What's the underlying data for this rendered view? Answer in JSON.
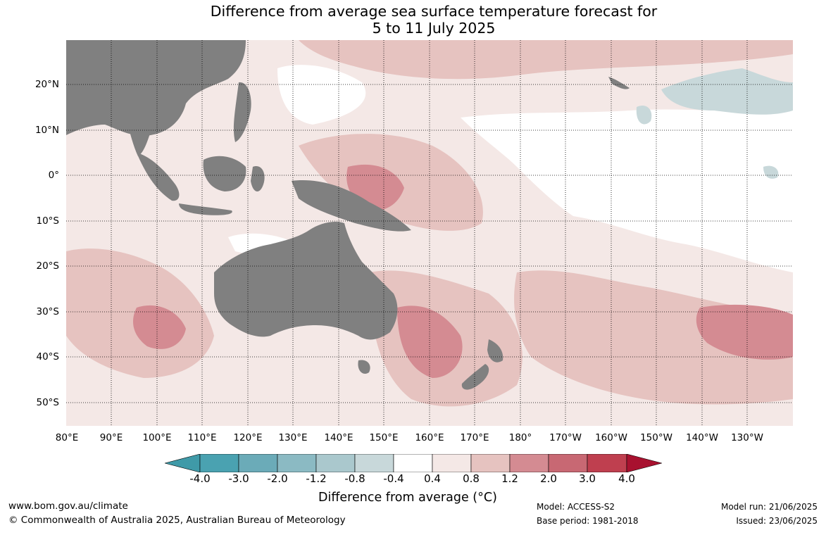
{
  "title": {
    "line1": "Difference from average sea surface temperature forecast for",
    "line2": "5 to 11 July 2025"
  },
  "map": {
    "lat_labels": [
      "20°N",
      "10°N",
      "0°",
      "10°S",
      "20°S",
      "30°S",
      "40°S",
      "50°S"
    ],
    "lon_labels": [
      "80°E",
      "90°E",
      "100°E",
      "110°E",
      "120°E",
      "130°E",
      "140°E",
      "150°E",
      "160°E",
      "170°E",
      "180°",
      "170°W",
      "160°W",
      "150°W",
      "140°W",
      "130°W"
    ],
    "land_color": "#808080",
    "ocean_color": "#ffffff"
  },
  "colorbar": {
    "title": "Difference from average (°C)",
    "ticks": [
      "-4.0",
      "-3.0",
      "-2.0",
      "-1.2",
      "-0.8",
      "-0.4",
      "0.4",
      "0.8",
      "1.2",
      "2.0",
      "3.0",
      "4.0"
    ],
    "colors": [
      "#3f9aa8",
      "#4aa2b1",
      "#6babb8",
      "#8bbac3",
      "#aac8cd",
      "#c8d8da",
      "#ffffff",
      "#f4e8e6",
      "#e6c3c0",
      "#d48b92",
      "#c86873",
      "#bf3f4f",
      "#a8112f"
    ]
  },
  "footer": {
    "url": "www.bom.gov.au/climate",
    "copyright": "© Commonwealth of Australia 2025, Australian Bureau of Meteorology",
    "model": "Model: ACCESS-S2",
    "base_period": "Base period: 1981-2018",
    "model_run": "Model run: 21/06/2025",
    "issued": "Issued: 23/06/2025"
  }
}
